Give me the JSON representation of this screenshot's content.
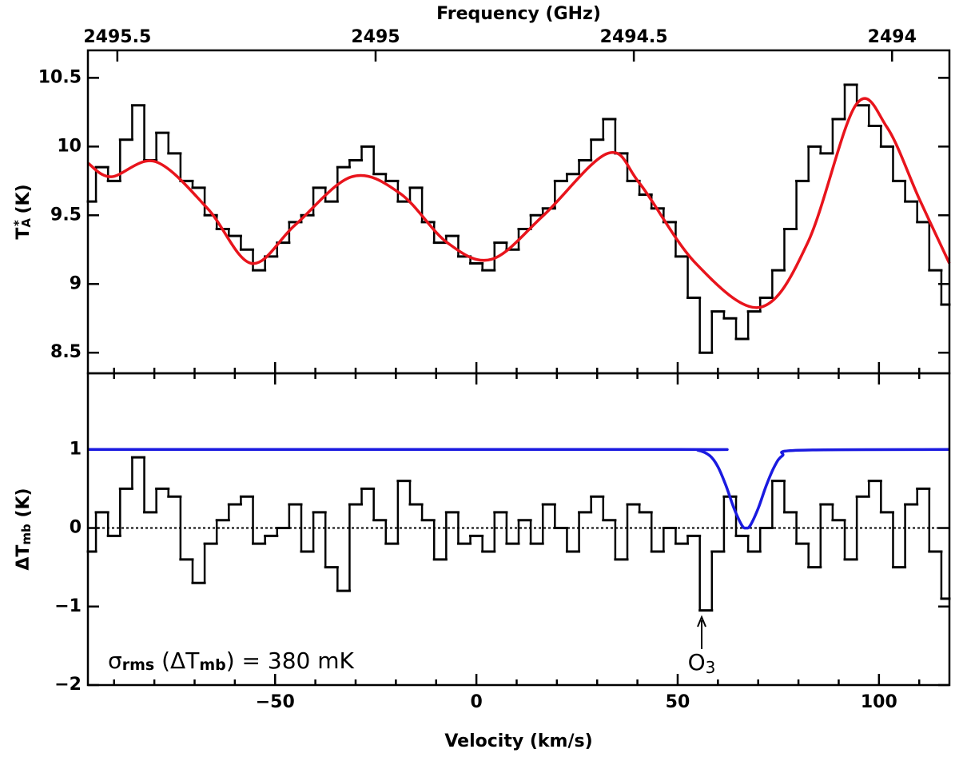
{
  "chart_data": [
    {
      "type": "step",
      "ylabel": [
        "T",
        "A",
        "*",
        " (K)"
      ],
      "x2label": "Frequency (GHz)",
      "x2lim": [
        2495.557,
        2493.889
      ],
      "x2ticks": [
        2495.5,
        2495,
        2494.5,
        2494
      ],
      "xlim": [
        -96.5,
        117.5
      ],
      "ylim": [
        8.35,
        10.7
      ],
      "yticks": [
        8.5,
        9,
        9.5,
        10,
        10.5
      ],
      "series": [
        {
          "style": "step",
          "color": "#000000",
          "x": [
            -96,
            -93,
            -90,
            -87,
            -84,
            -81,
            -78,
            -75,
            -72,
            -69,
            -66,
            -63,
            -60,
            -57,
            -54,
            -51,
            -48,
            -45,
            -42,
            -39,
            -36,
            -33,
            -30,
            -27,
            -24,
            -21,
            -18,
            -15,
            -12,
            -9,
            -6,
            -3,
            0,
            3,
            6,
            9,
            12,
            15,
            18,
            21,
            24,
            27,
            30,
            33,
            36,
            39,
            42,
            45,
            48,
            51,
            54,
            57,
            60,
            63,
            66,
            69,
            72,
            75,
            78,
            81,
            84,
            87,
            90,
            93,
            96,
            99,
            102,
            105,
            108,
            111,
            114,
            117
          ],
          "values": [
            9.6,
            9.85,
            9.75,
            10.05,
            10.3,
            9.9,
            10.1,
            9.95,
            9.75,
            9.7,
            9.5,
            9.4,
            9.35,
            9.25,
            9.1,
            9.2,
            9.3,
            9.45,
            9.5,
            9.7,
            9.6,
            9.85,
            9.9,
            10.0,
            9.8,
            9.75,
            9.6,
            9.7,
            9.45,
            9.3,
            9.35,
            9.2,
            9.15,
            9.1,
            9.3,
            9.25,
            9.4,
            9.5,
            9.55,
            9.75,
            9.8,
            9.9,
            10.05,
            10.2,
            9.95,
            9.75,
            9.65,
            9.55,
            9.45,
            9.2,
            8.9,
            8.5,
            8.8,
            8.75,
            8.6,
            8.8,
            8.9,
            9.1,
            9.4,
            9.75,
            10.0,
            9.95,
            10.2,
            10.45,
            10.3,
            10.15,
            10.0,
            9.75,
            9.6,
            9.45,
            9.1,
            8.85
          ]
        },
        {
          "style": "line",
          "color": "#e8141c",
          "x": [
            -96.5,
            -90.7,
            -79.7,
            -66.8,
            -55.9,
            -45,
            -31,
            -19,
            -7.2,
            3.8,
            16.7,
            32.6,
            40.6,
            54.5,
            70.4,
            82.3,
            94.2,
            102,
            110,
            117.5
          ],
          "values": [
            9.88,
            9.78,
            9.89,
            9.55,
            9.15,
            9.43,
            9.78,
            9.66,
            9.3,
            9.18,
            9.5,
            9.95,
            9.73,
            9.15,
            8.83,
            9.3,
            10.3,
            10.14,
            9.62,
            9.15
          ]
        }
      ]
    },
    {
      "type": "step",
      "ylabel": [
        "ΔT",
        "mb",
        " (K)"
      ],
      "xlabel": "Velocity (km/s)",
      "xlim": [
        -96.5,
        117.5
      ],
      "xticks": [
        {
          "value": -50,
          "label": "−50"
        },
        0,
        50,
        100
      ],
      "xminorticks": [
        -90,
        -80,
        -70,
        -60,
        -40,
        -30,
        -20,
        -10,
        10,
        20,
        30,
        40,
        60,
        70,
        80,
        90,
        110
      ],
      "ylim": [
        -2,
        1.97
      ],
      "yticks": [
        {
          "value": -2,
          "label": "−2"
        },
        {
          "value": -1,
          "label": "−1"
        },
        0,
        1
      ],
      "zero_line": 0,
      "annotation": [
        "σ",
        "rms",
        " (ΔT",
        "mb",
        ") = 380 mK"
      ],
      "line_label": [
        "O",
        "3"
      ],
      "series": [
        {
          "style": "step",
          "color": "#000000",
          "x": [
            -96,
            -93,
            -90,
            -87,
            -84,
            -81,
            -78,
            -75,
            -72,
            -69,
            -66,
            -63,
            -60,
            -57,
            -54,
            -51,
            -48,
            -45,
            -42,
            -39,
            -36,
            -33,
            -30,
            -27,
            -24,
            -21,
            -18,
            -15,
            -12,
            -9,
            -6,
            -3,
            0,
            3,
            6,
            9,
            12,
            15,
            18,
            21,
            24,
            27,
            30,
            33,
            36,
            39,
            42,
            45,
            48,
            51,
            54,
            57,
            60,
            63,
            66,
            69,
            72,
            75,
            78,
            81,
            84,
            87,
            90,
            93,
            96,
            99,
            102,
            105,
            108,
            111,
            114,
            117
          ],
          "values": [
            -0.3,
            0.2,
            -0.1,
            0.5,
            0.9,
            0.2,
            0.5,
            0.4,
            -0.4,
            -0.7,
            -0.2,
            0.1,
            0.3,
            0.4,
            -0.2,
            -0.1,
            0.0,
            0.3,
            -0.3,
            0.2,
            -0.5,
            -0.8,
            0.3,
            0.5,
            0.1,
            -0.2,
            0.6,
            0.3,
            0.1,
            -0.4,
            0.2,
            -0.2,
            -0.1,
            -0.3,
            0.2,
            -0.2,
            0.1,
            -0.2,
            0.3,
            0.0,
            -0.3,
            0.2,
            0.4,
            0.1,
            -0.4,
            0.3,
            0.2,
            -0.3,
            0.0,
            -0.2,
            -0.1,
            -1.05,
            -0.3,
            0.4,
            -0.1,
            -0.3,
            0.0,
            0.6,
            0.2,
            -0.2,
            -0.5,
            0.3,
            0.1,
            -0.4,
            0.4,
            0.6,
            0.2,
            -0.5,
            0.3,
            0.5,
            -0.3,
            -0.9
          ]
        },
        {
          "style": "line",
          "color": "#1a1ae0",
          "x": [
            -96.5,
            50,
            55,
            58,
            60,
            62,
            64,
            66,
            67,
            68,
            70,
            72,
            74,
            76,
            80,
            117.5
          ],
          "values": [
            1,
            1,
            0.99,
            0.92,
            0.78,
            0.54,
            0.25,
            0.03,
            0,
            0.03,
            0.25,
            0.54,
            0.78,
            0.92,
            0.99,
            1
          ]
        }
      ]
    }
  ]
}
